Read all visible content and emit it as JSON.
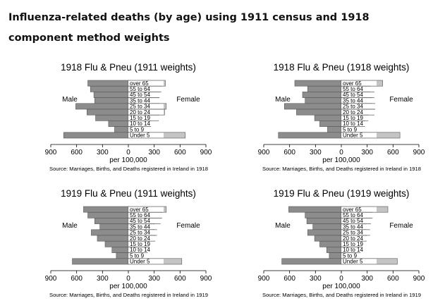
{
  "page": {
    "title": "Influenza-related deaths  (by age) using 1911 census and 1918 component method weights"
  },
  "colors": {
    "male_bar": "#8c8c8c",
    "female_bar": "#c4c4c4",
    "bar_stroke": "#555555",
    "axis": "#000000",
    "label_bg": "#ffffff"
  },
  "chart_data": [
    {
      "type": "bar",
      "orientation": "horizontal-pyramid",
      "title": "1918 Flu & Pneu (1911 weights)",
      "xlabel": "per 100,000",
      "note": "Source: Marriages, Births, and Deaths registered in Ireland in 1918",
      "left_label": "Male",
      "right_label": "Female",
      "categories": [
        "over 65",
        "55 to 64",
        "45 to 54",
        "35 to 44",
        "25 to 34",
        "20 to 24",
        "15 to 19",
        "10 to 14",
        "5 to 9",
        "Under 5"
      ],
      "series": [
        {
          "name": "Male",
          "values": [
            470,
            440,
            400,
            390,
            610,
            480,
            380,
            230,
            160,
            750
          ]
        },
        {
          "name": "Female",
          "values": [
            430,
            380,
            360,
            350,
            440,
            420,
            350,
            260,
            150,
            660
          ]
        }
      ],
      "xlim": [
        -900,
        900
      ],
      "xticks": [
        -900,
        -600,
        -300,
        0,
        300,
        600,
        900
      ],
      "xtick_labels": [
        "900",
        "600",
        "300",
        "0",
        "300",
        "600",
        "900"
      ]
    },
    {
      "type": "bar",
      "orientation": "horizontal-pyramid",
      "title": "1918 Flu & Pneu (1918 weights)",
      "xlabel": "per 100,000",
      "note": "Source: Marriages, Births, and Deaths registered in Ireland in 1918",
      "left_label": "Male",
      "right_label": "Female",
      "categories": [
        "over 65",
        "55 to 64",
        "45 to 54",
        "35 to 44",
        "25 to 34",
        "20 to 24",
        "15 to 19",
        "10 to 14",
        "5 to 9",
        "Under 5"
      ],
      "series": [
        {
          "name": "Male",
          "values": [
            540,
            390,
            450,
            420,
            660,
            520,
            310,
            250,
            160,
            730
          ]
        },
        {
          "name": "Female",
          "values": [
            480,
            330,
            380,
            350,
            390,
            380,
            310,
            270,
            170,
            680
          ]
        }
      ],
      "xlim": [
        -900,
        900
      ],
      "xticks": [
        -900,
        -600,
        -300,
        0,
        300,
        600,
        900
      ],
      "xtick_labels": [
        "900",
        "600",
        "300",
        "0",
        "300",
        "600",
        "900"
      ]
    },
    {
      "type": "bar",
      "orientation": "horizontal-pyramid",
      "title": "1919 Flu & Pneu (1911 weights)",
      "xlabel": "per 100,000",
      "note": "Source: Marriages, Births, and Deaths registered in Ireland in 1919",
      "left_label": "Male",
      "right_label": "Female",
      "categories": [
        "over 65",
        "55 to 64",
        "45 to 54",
        "35 to 44",
        "25 to 34",
        "20 to 24",
        "15 to 19",
        "10 to 14",
        "5 to 9",
        "Under 5"
      ],
      "series": [
        {
          "name": "Male",
          "values": [
            520,
            470,
            390,
            330,
            430,
            360,
            270,
            190,
            140,
            650
          ]
        },
        {
          "name": "Female",
          "values": [
            440,
            390,
            370,
            300,
            330,
            310,
            240,
            220,
            160,
            620
          ]
        }
      ],
      "xlim": [
        -900,
        900
      ],
      "xticks": [
        -900,
        -600,
        -300,
        0,
        300,
        600,
        900
      ],
      "xtick_labels": [
        "900",
        "600",
        "300",
        "0",
        "300",
        "600",
        "900"
      ]
    },
    {
      "type": "bar",
      "orientation": "horizontal-pyramid",
      "title": "1919 Flu & Pneu (1919 weights)",
      "xlabel": "per 100,000",
      "note": "Source: Marriages, Births, and Deaths registered in Ireland in 1919",
      "left_label": "Male",
      "right_label": "Female",
      "categories": [
        "over 65",
        "55 to 64",
        "45 to 54",
        "35 to 44",
        "25 to 34",
        "20 to 24",
        "15 to 19",
        "10 to 14",
        "5 to 9",
        "Under 5"
      ],
      "series": [
        {
          "name": "Male",
          "values": [
            610,
            420,
            400,
            330,
            390,
            310,
            250,
            170,
            140,
            690
          ]
        },
        {
          "name": "Female",
          "values": [
            540,
            360,
            340,
            280,
            330,
            290,
            240,
            220,
            170,
            650
          ]
        }
      ],
      "xlim": [
        -900,
        900
      ],
      "xticks": [
        -900,
        -600,
        -300,
        0,
        300,
        600,
        900
      ],
      "xtick_labels": [
        "900",
        "600",
        "300",
        "0",
        "300",
        "600",
        "900"
      ]
    }
  ]
}
